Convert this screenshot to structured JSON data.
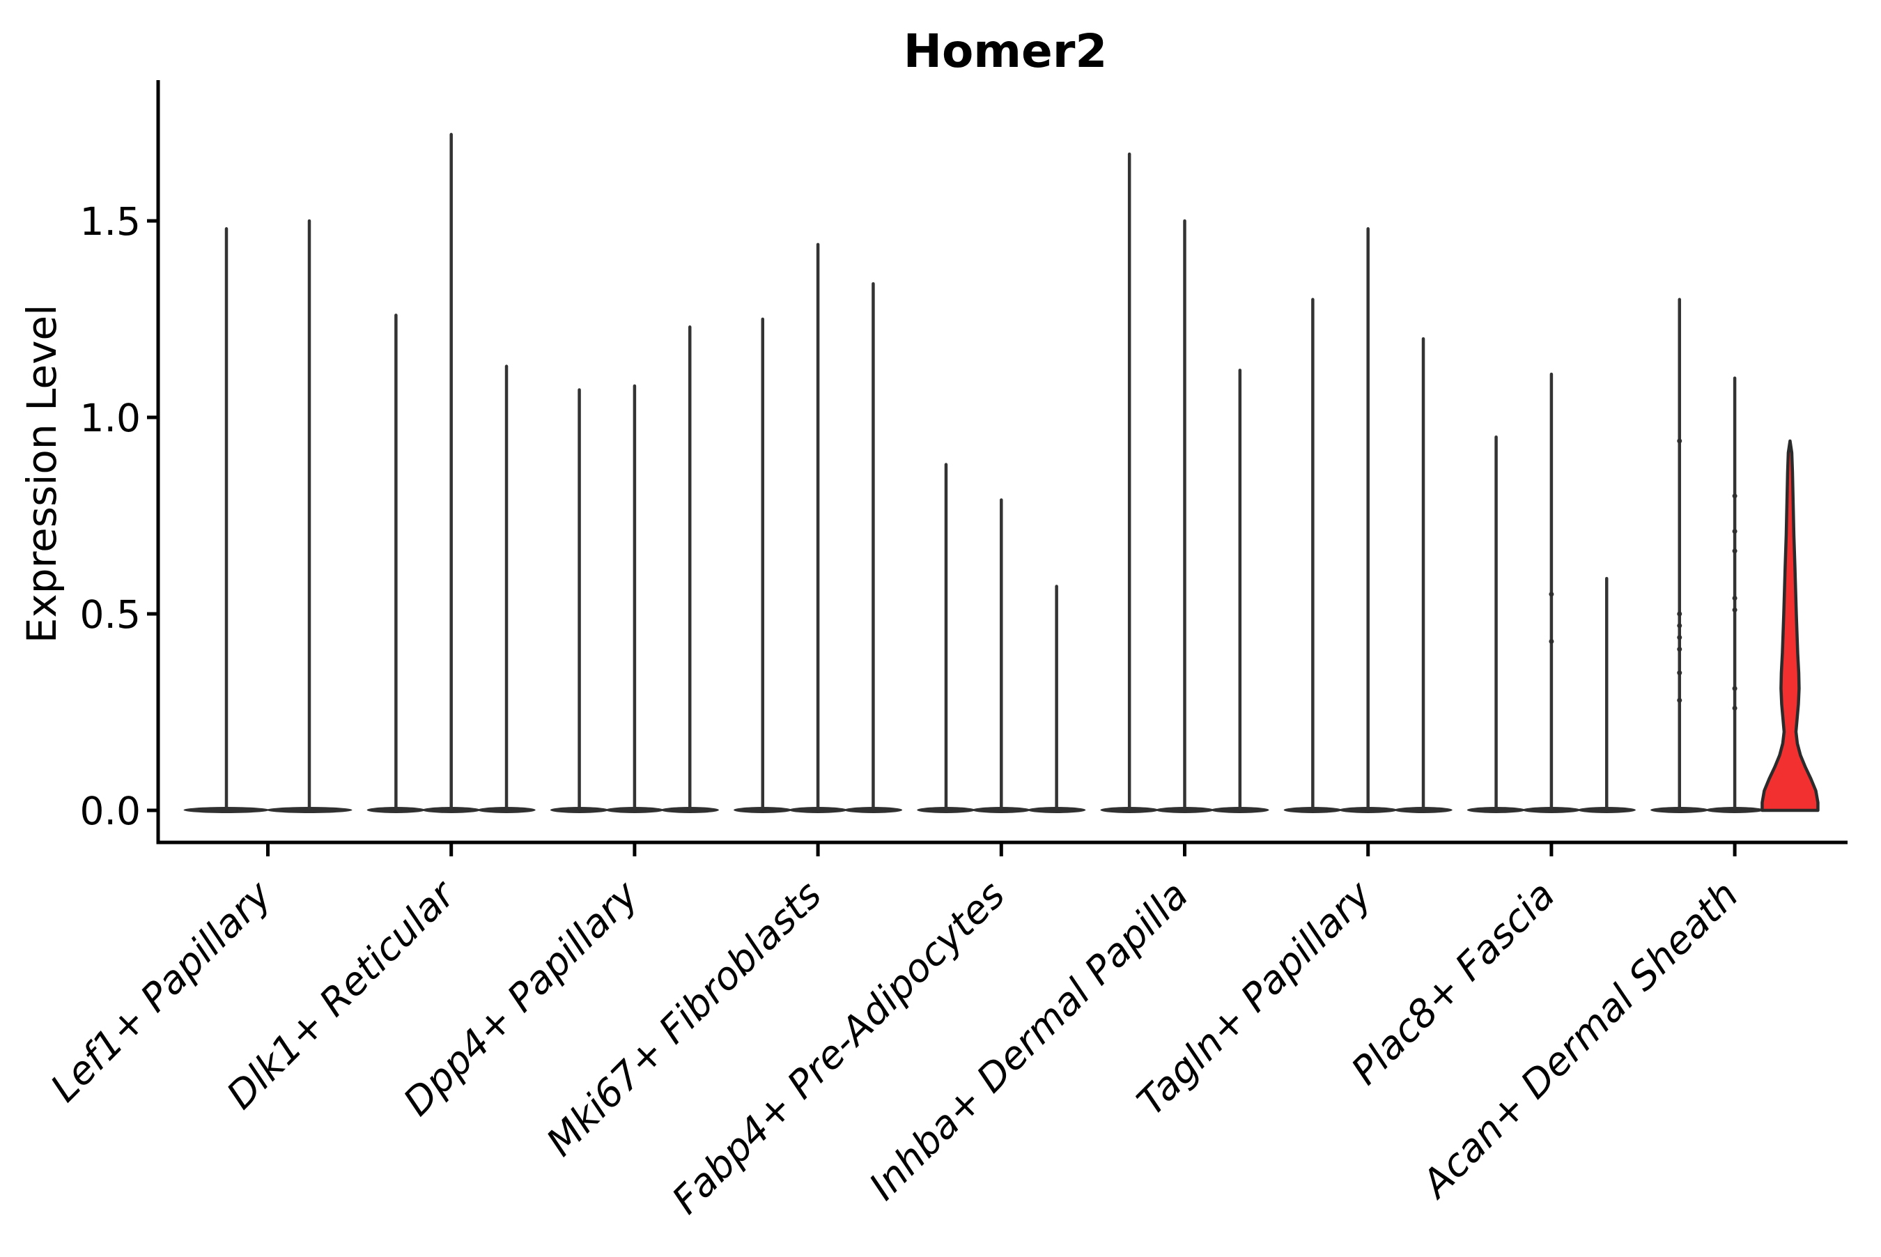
{
  "title": "Homer2",
  "axes": {
    "y_label": "Expression Level",
    "y_tick_labels": [
      "0.0",
      "0.5",
      "1.0",
      "1.5"
    ],
    "y_tick_values": [
      0.0,
      0.5,
      1.0,
      1.5
    ]
  },
  "chart_data": {
    "type": "violin",
    "title": "Homer2",
    "xlabel": "",
    "ylabel": "Expression Level",
    "ylim": [
      -0.08,
      1.86
    ],
    "yticks": [
      0.0,
      0.5,
      1.0,
      1.5
    ],
    "grid": false,
    "legend": "none",
    "description": "Split violin plot of Homer2 expression per fibroblast cluster; each cluster shows 2-3 near-zero-width density spikes (max expression of each split), all collapsed at 0 except one red filled violin in Acan+ Dermal Sheath.",
    "categories": [
      "Lef1+ Papillary",
      "Dlk1+ Reticular",
      "Dpp4+ Papillary",
      "Mki67+ Fibroblasts",
      "Fabp4+ Pre-Adipocytes",
      "Inhba+ Dermal Papilla",
      "Tagln+ Papillary",
      "Plac8+ Fascia",
      "Acan+ Dermal Sheath"
    ],
    "violins": [
      {
        "category": "Lef1+ Papillary",
        "spikes": [
          1.48,
          1.5
        ],
        "jitter": [
          [],
          []
        ]
      },
      {
        "category": "Dlk1+ Reticular",
        "spikes": [
          1.26,
          1.72,
          1.13
        ],
        "jitter": [
          [],
          [],
          []
        ]
      },
      {
        "category": "Dpp4+ Papillary",
        "spikes": [
          1.07,
          1.08,
          1.23
        ],
        "jitter": [
          [],
          [],
          []
        ]
      },
      {
        "category": "Mki67+ Fibroblasts",
        "spikes": [
          1.25,
          1.44,
          1.34
        ],
        "jitter": [
          [],
          [],
          []
        ]
      },
      {
        "category": "Fabp4+ Pre-Adipocytes",
        "spikes": [
          0.88,
          0.79,
          0.57
        ],
        "jitter": [
          [],
          [],
          []
        ]
      },
      {
        "category": "Inhba+ Dermal Papilla",
        "spikes": [
          1.67,
          1.5,
          1.12
        ],
        "jitter": [
          [],
          [],
          []
        ]
      },
      {
        "category": "Tagln+ Papillary",
        "spikes": [
          1.3,
          1.48,
          1.2
        ],
        "jitter": [
          [],
          [],
          []
        ]
      },
      {
        "category": "Plac8+ Fascia",
        "spikes": [
          0.95,
          1.11,
          0.59
        ],
        "jitter": [
          [],
          [
            0.55,
            0.43
          ],
          []
        ]
      },
      {
        "category": "Acan+ Dermal Sheath",
        "spikes": [
          1.3,
          1.1
        ],
        "jitter": [
          [
            0.94,
            0.5,
            0.47,
            0.44,
            0.41,
            0.35,
            0.28
          ],
          [
            0.8,
            0.71,
            0.66,
            0.54,
            0.51,
            0.31,
            0.26
          ]
        ],
        "highlight": {
          "max": 0.94,
          "profile": [
            [
              0.0,
              40.0
            ],
            [
              0.02,
              40.0
            ],
            [
              0.05,
              37.0
            ],
            [
              0.08,
              30.0
            ],
            [
              0.11,
              22.0
            ],
            [
              0.14,
              15.0
            ],
            [
              0.17,
              10.5
            ],
            [
              0.2,
              8.5
            ],
            [
              0.23,
              10.0
            ],
            [
              0.27,
              12.0
            ],
            [
              0.31,
              13.0
            ],
            [
              0.35,
              12.5
            ],
            [
              0.4,
              11.0
            ],
            [
              0.45,
              10.0
            ],
            [
              0.5,
              9.0
            ],
            [
              0.56,
              8.0
            ],
            [
              0.62,
              7.0
            ],
            [
              0.7,
              5.5
            ],
            [
              0.78,
              4.5
            ],
            [
              0.86,
              3.5
            ],
            [
              0.91,
              2.5
            ],
            [
              0.94,
              0.0
            ]
          ]
        }
      }
    ],
    "colors": {
      "spike": "#333333",
      "violin_base": "#303030",
      "highlight_fill": "#F23030",
      "highlight_outline": "#2B2B2B",
      "axis": "#000000"
    }
  }
}
